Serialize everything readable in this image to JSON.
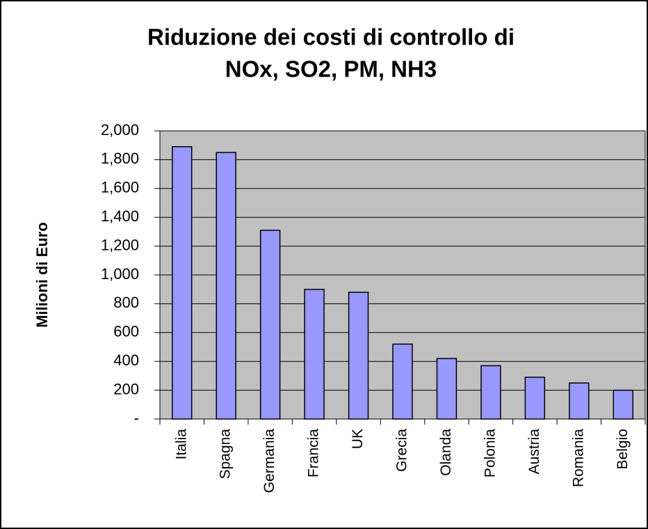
{
  "chart_data": {
    "type": "bar",
    "title": [
      "Riduzione dei costi di controllo di",
      "NOx, SO2, PM, NH3"
    ],
    "y_label": "Milioni di Euro",
    "categories": [
      "Italia",
      "Spagna",
      "Germania",
      "Francia",
      "UK",
      "Grecia",
      "Olanda",
      "Polonia",
      "Austria",
      "Romania",
      "Belgio"
    ],
    "values": [
      1890,
      1850,
      1310,
      900,
      880,
      520,
      420,
      370,
      290,
      250,
      200
    ],
    "color": "#9999ff",
    "ylim": [
      0,
      2000
    ],
    "yticks": [
      {
        "value": 0,
        "label": "-"
      },
      200,
      400,
      600,
      800,
      {
        "value": 1000,
        "label": "1,000"
      },
      {
        "value": 1200,
        "label": "1,200"
      },
      {
        "value": 1400,
        "label": "1,400"
      },
      {
        "value": 1600,
        "label": "1,600"
      },
      {
        "value": 1800,
        "label": "1,800"
      },
      {
        "value": 2000,
        "label": "2,000"
      }
    ],
    "grid": true
  }
}
